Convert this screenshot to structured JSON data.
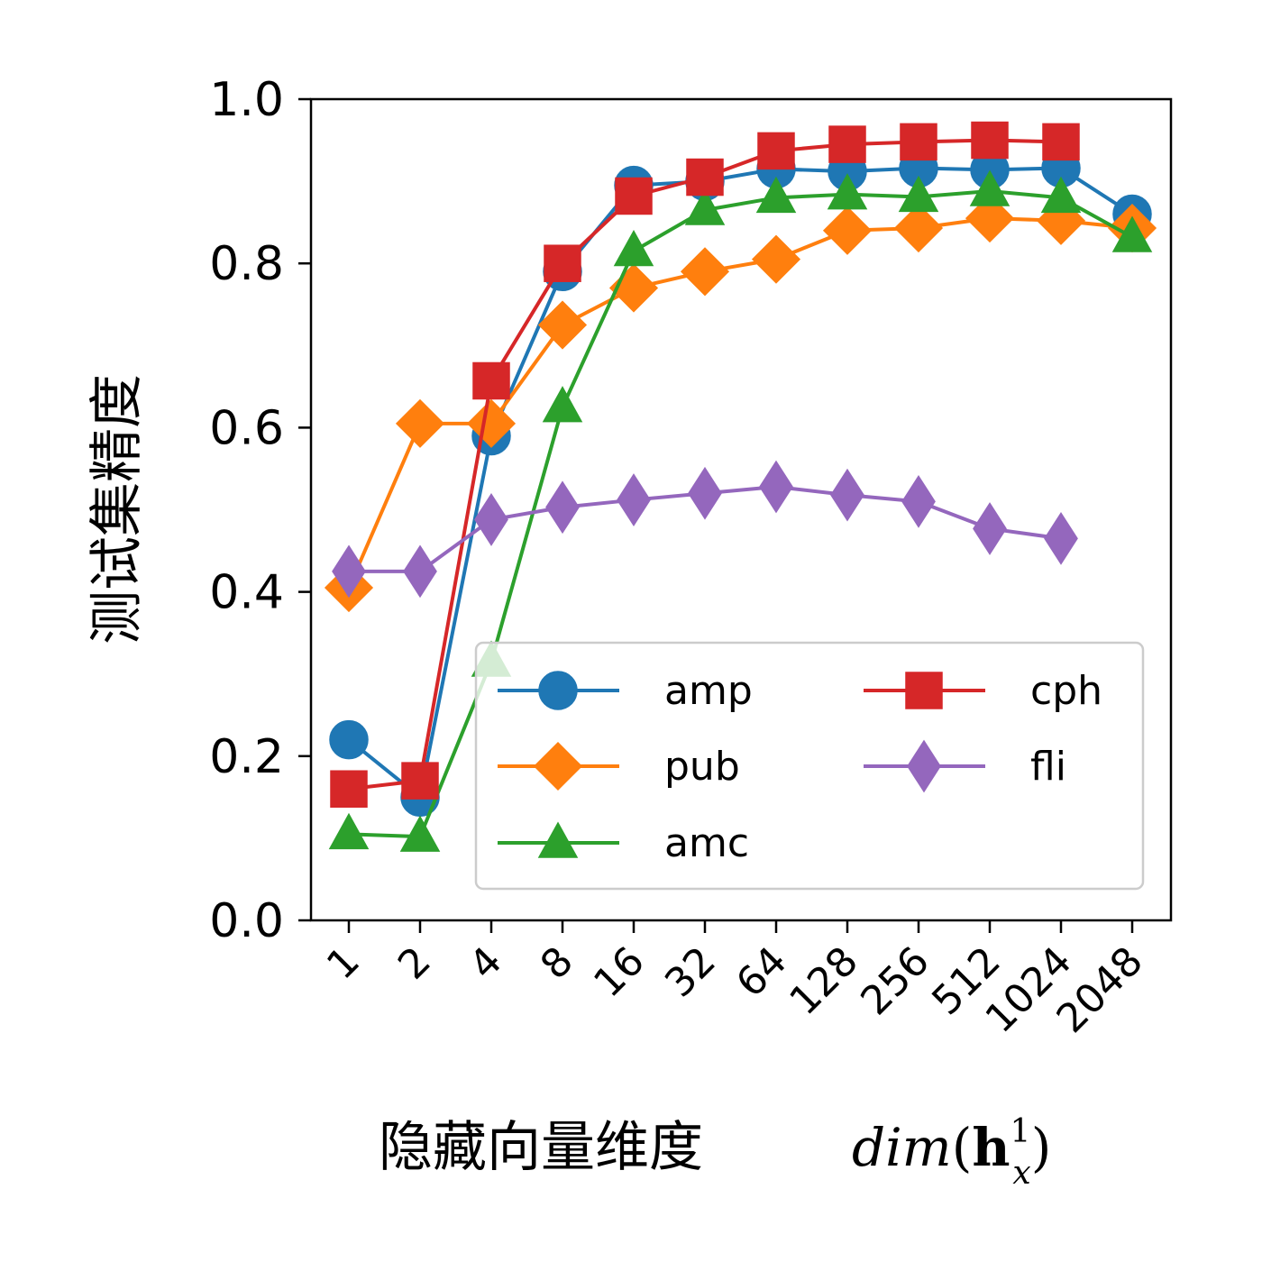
{
  "chart_data": {
    "type": "line",
    "xlabel": {
      "prefix": "隐藏向量维度",
      "math": "dim(h_x^1)"
    },
    "ylabel": "测试集精度",
    "categories": [
      "1",
      "2",
      "4",
      "8",
      "16",
      "32",
      "64",
      "128",
      "256",
      "512",
      "1024",
      "2048"
    ],
    "ylim": [
      0,
      1.0
    ],
    "yticks": [
      "0.0",
      "0.2",
      "0.4",
      "0.6",
      "0.8",
      "1.0"
    ],
    "grid": false,
    "legend_position": "lower-right",
    "series": [
      {
        "name": "amp",
        "color": "#1f77b4",
        "marker": "circle",
        "values": [
          0.22,
          0.15,
          0.59,
          0.79,
          0.895,
          0.9,
          0.915,
          0.912,
          0.916,
          0.914,
          0.916,
          0.86
        ]
      },
      {
        "name": "pub",
        "color": "#ff7f0e",
        "marker": "diamond",
        "values": [
          0.405,
          0.605,
          0.605,
          0.725,
          0.77,
          0.79,
          0.805,
          0.84,
          0.843,
          0.855,
          0.852,
          0.843
        ]
      },
      {
        "name": "amc",
        "color": "#2ca02c",
        "marker": "triangle",
        "values": [
          0.105,
          0.102,
          0.315,
          0.625,
          0.815,
          0.865,
          0.88,
          0.884,
          0.881,
          0.888,
          0.88,
          0.832
        ]
      },
      {
        "name": "cph",
        "color": "#d62728",
        "marker": "square",
        "values": [
          0.16,
          0.17,
          0.657,
          0.8,
          0.882,
          0.905,
          0.937,
          0.945,
          0.948,
          0.95,
          0.948,
          null
        ]
      },
      {
        "name": "fli",
        "color": "#9467bd",
        "marker": "thin-diamond",
        "values": [
          0.425,
          0.425,
          0.488,
          0.503,
          0.512,
          0.52,
          0.528,
          0.518,
          0.51,
          0.477,
          0.465,
          null
        ]
      }
    ]
  }
}
